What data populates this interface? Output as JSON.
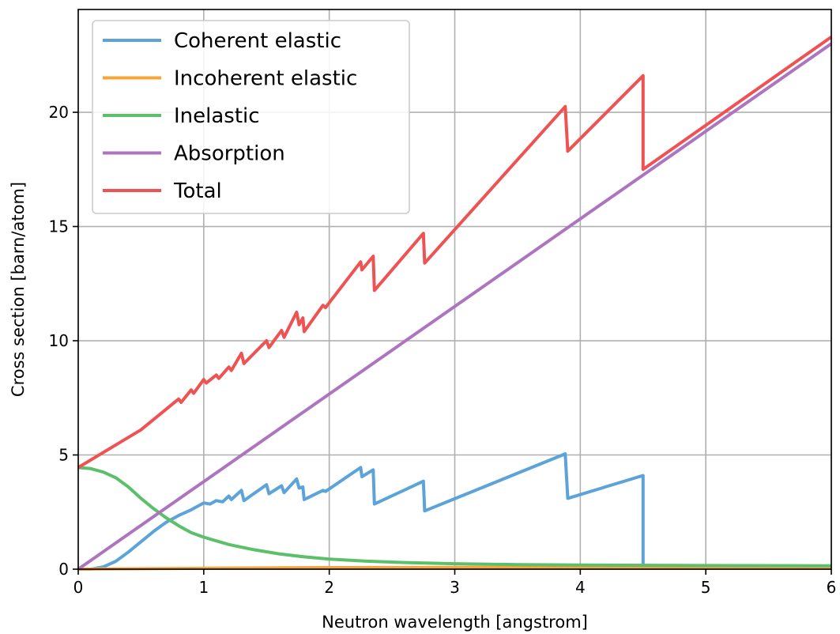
{
  "chart_data": {
    "type": "line",
    "title": "",
    "xlabel": "Neutron wavelength [angstrom]",
    "ylabel": "Cross section [barn/atom]",
    "xlim": [
      0,
      6
    ],
    "ylim": [
      0,
      24.5
    ],
    "xticks": [
      0,
      1,
      2,
      3,
      4,
      5,
      6
    ],
    "xtick_labels": [
      "0",
      "1",
      "2",
      "3",
      "4",
      "5",
      "6"
    ],
    "yticks": [
      0,
      5,
      10,
      15,
      20
    ],
    "ytick_labels": [
      "0",
      "5",
      "10",
      "15",
      "20"
    ],
    "grid": true,
    "legend_position": "top-left",
    "series": [
      {
        "name": "Coherent elastic",
        "color": "#5ba3d9",
        "points": [
          [
            0,
            0
          ],
          [
            0.1,
            0
          ],
          [
            0.2,
            0.1
          ],
          [
            0.3,
            0.35
          ],
          [
            0.4,
            0.75
          ],
          [
            0.5,
            1.2
          ],
          [
            0.6,
            1.65
          ],
          [
            0.7,
            2.05
          ],
          [
            0.8,
            2.35
          ],
          [
            0.9,
            2.6
          ],
          [
            1.0,
            2.9
          ],
          [
            1.05,
            2.85
          ],
          [
            1.1,
            3.0
          ],
          [
            1.15,
            2.95
          ],
          [
            1.2,
            3.2
          ],
          [
            1.22,
            3.05
          ],
          [
            1.3,
            3.45
          ],
          [
            1.32,
            3.0
          ],
          [
            1.5,
            3.7
          ],
          [
            1.52,
            3.3
          ],
          [
            1.62,
            3.65
          ],
          [
            1.64,
            3.35
          ],
          [
            1.74,
            3.95
          ],
          [
            1.76,
            3.55
          ],
          [
            1.79,
            3.6
          ],
          [
            1.8,
            3.05
          ],
          [
            1.95,
            3.45
          ],
          [
            1.97,
            3.4
          ],
          [
            2.25,
            4.45
          ],
          [
            2.26,
            4.05
          ],
          [
            2.35,
            4.35
          ],
          [
            2.36,
            2.85
          ],
          [
            2.75,
            3.85
          ],
          [
            2.76,
            2.55
          ],
          [
            3.88,
            5.05
          ],
          [
            3.9,
            3.1
          ],
          [
            4.5,
            4.1
          ],
          [
            4.5,
            0.05
          ],
          [
            6.0,
            0.05
          ]
        ]
      },
      {
        "name": "Incoherent elastic",
        "color": "#f5a53a",
        "points": [
          [
            0,
            0
          ],
          [
            0.5,
            0.02
          ],
          [
            1,
            0.04
          ],
          [
            2,
            0.07
          ],
          [
            3,
            0.08
          ],
          [
            4,
            0.08
          ],
          [
            5,
            0.08
          ],
          [
            6,
            0.08
          ]
        ]
      },
      {
        "name": "Inelastic",
        "color": "#5cbf6a",
        "points": [
          [
            0,
            4.45
          ],
          [
            0.1,
            4.4
          ],
          [
            0.2,
            4.25
          ],
          [
            0.3,
            4.0
          ],
          [
            0.4,
            3.6
          ],
          [
            0.5,
            3.1
          ],
          [
            0.6,
            2.65
          ],
          [
            0.7,
            2.25
          ],
          [
            0.8,
            1.9
          ],
          [
            0.9,
            1.6
          ],
          [
            1.0,
            1.4
          ],
          [
            1.2,
            1.08
          ],
          [
            1.4,
            0.85
          ],
          [
            1.6,
            0.67
          ],
          [
            1.8,
            0.54
          ],
          [
            2.0,
            0.44
          ],
          [
            2.3,
            0.35
          ],
          [
            2.6,
            0.29
          ],
          [
            3.0,
            0.24
          ],
          [
            3.5,
            0.2
          ],
          [
            4.0,
            0.18
          ],
          [
            5.0,
            0.16
          ],
          [
            6.0,
            0.15
          ]
        ]
      },
      {
        "name": "Absorption",
        "color": "#ad75c0",
        "points": [
          [
            0,
            0
          ],
          [
            6,
            23.0
          ]
        ]
      },
      {
        "name": "Total",
        "color": "#ee5253",
        "points": [
          [
            0,
            4.45
          ],
          [
            0.5,
            6.1
          ],
          [
            0.8,
            7.45
          ],
          [
            0.82,
            7.3
          ],
          [
            0.9,
            7.85
          ],
          [
            0.92,
            7.7
          ],
          [
            1.0,
            8.3
          ],
          [
            1.02,
            8.15
          ],
          [
            1.1,
            8.5
          ],
          [
            1.12,
            8.35
          ],
          [
            1.2,
            8.85
          ],
          [
            1.22,
            8.7
          ],
          [
            1.3,
            9.45
          ],
          [
            1.32,
            9.0
          ],
          [
            1.5,
            10.0
          ],
          [
            1.52,
            9.7
          ],
          [
            1.62,
            10.45
          ],
          [
            1.64,
            10.15
          ],
          [
            1.74,
            11.25
          ],
          [
            1.76,
            10.7
          ],
          [
            1.79,
            11.0
          ],
          [
            1.8,
            10.4
          ],
          [
            1.95,
            11.55
          ],
          [
            1.97,
            11.45
          ],
          [
            2.25,
            13.45
          ],
          [
            2.26,
            13.1
          ],
          [
            2.35,
            13.7
          ],
          [
            2.36,
            12.2
          ],
          [
            2.75,
            14.7
          ],
          [
            2.76,
            13.4
          ],
          [
            3.88,
            20.25
          ],
          [
            3.9,
            18.3
          ],
          [
            4.5,
            21.6
          ],
          [
            4.5,
            17.5
          ],
          [
            6.0,
            23.3
          ]
        ]
      }
    ]
  }
}
